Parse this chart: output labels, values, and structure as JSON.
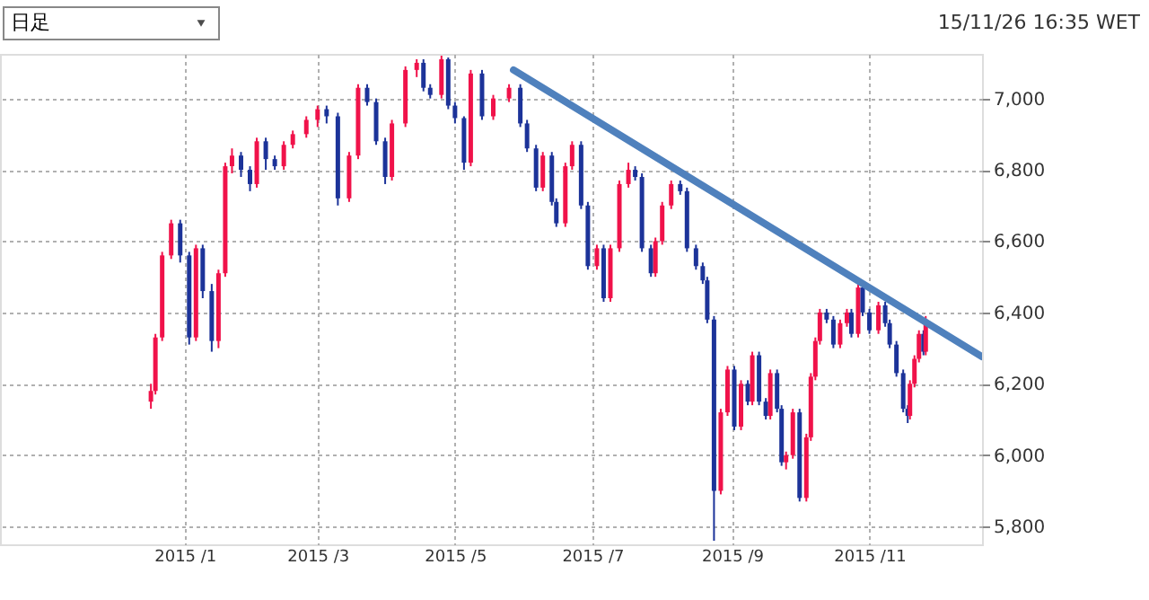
{
  "chart_data": {
    "type": "candlestick",
    "annotations": [
      "日足",
      "15/11/26 16:35 WET"
    ],
    "x": [
      "2014-12-17",
      "2014-12-19",
      "2014-12-22",
      "2014-12-26",
      "2014-12-30",
      "2015-01-03",
      "2015-01-06",
      "2015-01-09",
      "2015-01-13",
      "2015-01-16",
      "2015-01-19",
      "2015-01-22",
      "2015-01-26",
      "2015-01-30",
      "2015-02-02",
      "2015-02-06",
      "2015-02-10",
      "2015-02-14",
      "2015-02-18",
      "2015-02-24",
      "2015-03-01",
      "2015-03-05",
      "2015-03-10",
      "2015-03-15",
      "2015-03-19",
      "2015-03-23",
      "2015-03-27",
      "2015-03-31",
      "2015-04-03",
      "2015-04-09",
      "2015-04-14",
      "2015-04-17",
      "2015-04-20",
      "2015-04-25",
      "2015-04-28",
      "2015-05-01",
      "2015-05-05",
      "2015-05-08",
      "2015-05-13",
      "2015-05-18",
      "2015-05-25",
      "2015-05-30",
      "2015-06-02",
      "2015-06-06",
      "2015-06-09",
      "2015-06-13",
      "2015-06-15",
      "2015-06-19",
      "2015-06-22",
      "2015-06-26",
      "2015-06-29",
      "2015-07-03",
      "2015-07-06",
      "2015-07-09",
      "2015-07-13",
      "2015-07-17",
      "2015-07-20",
      "2015-07-23",
      "2015-07-27",
      "2015-07-29",
      "2015-08-01",
      "2015-08-05",
      "2015-08-09",
      "2015-08-12",
      "2015-08-16",
      "2015-08-19",
      "2015-08-21",
      "2015-08-24",
      "2015-08-27",
      "2015-08-30",
      "2015-09-02",
      "2015-09-05",
      "2015-09-08",
      "2015-09-10",
      "2015-09-13",
      "2015-09-16",
      "2015-09-18",
      "2015-09-21",
      "2015-09-23",
      "2015-09-25",
      "2015-09-28",
      "2015-10-01",
      "2015-10-04",
      "2015-10-06",
      "2015-10-08",
      "2015-10-10",
      "2015-10-13",
      "2015-10-16",
      "2015-10-19",
      "2015-10-22",
      "2015-10-24",
      "2015-10-27",
      "2015-10-29",
      "2015-11-01",
      "2015-11-05",
      "2015-11-08",
      "2015-11-10",
      "2015-11-13",
      "2015-11-16",
      "2015-11-18",
      "2015-11-19",
      "2015-11-21",
      "2015-11-23",
      "2015-11-25",
      "2015-11-26"
    ],
    "ohlc": [
      [
        6150,
        6200,
        6130,
        6180
      ],
      [
        6180,
        6340,
        6170,
        6330
      ],
      [
        6330,
        6570,
        6320,
        6560
      ],
      [
        6560,
        6660,
        6550,
        6650
      ],
      [
        6650,
        6660,
        6540,
        6560
      ],
      [
        6560,
        6570,
        6310,
        6330
      ],
      [
        6330,
        6590,
        6320,
        6580
      ],
      [
        6580,
        6590,
        6440,
        6460
      ],
      [
        6460,
        6480,
        6290,
        6320
      ],
      [
        6320,
        6520,
        6300,
        6510
      ],
      [
        6510,
        6820,
        6500,
        6810
      ],
      [
        6810,
        6860,
        6790,
        6840
      ],
      [
        6840,
        6850,
        6780,
        6800
      ],
      [
        6800,
        6810,
        6740,
        6760
      ],
      [
        6760,
        6890,
        6750,
        6880
      ],
      [
        6880,
        6890,
        6800,
        6830
      ],
      [
        6830,
        6840,
        6800,
        6810
      ],
      [
        6810,
        6880,
        6800,
        6870
      ],
      [
        6870,
        6910,
        6860,
        6900
      ],
      [
        6900,
        6950,
        6890,
        6940
      ],
      [
        6940,
        6980,
        6920,
        6970
      ],
      [
        6970,
        6980,
        6930,
        6950
      ],
      [
        6950,
        6960,
        6700,
        6720
      ],
      [
        6720,
        6850,
        6710,
        6840
      ],
      [
        6840,
        7040,
        6830,
        7030
      ],
      [
        7030,
        7040,
        6980,
        6990
      ],
      [
        6990,
        7000,
        6870,
        6880
      ],
      [
        6880,
        6890,
        6760,
        6780
      ],
      [
        6780,
        6940,
        6770,
        6930
      ],
      [
        6930,
        7090,
        6920,
        7080
      ],
      [
        7080,
        7110,
        7060,
        7100
      ],
      [
        7100,
        7110,
        7020,
        7030
      ],
      [
        7030,
        7040,
        7000,
        7010
      ],
      [
        7010,
        7120,
        7000,
        7110
      ],
      [
        7110,
        7115,
        6970,
        6980
      ],
      [
        6980,
        6990,
        6930,
        6945
      ],
      [
        6945,
        6950,
        6800,
        6820
      ],
      [
        6820,
        7080,
        6810,
        7070
      ],
      [
        7070,
        7080,
        6940,
        6950
      ],
      [
        6950,
        7010,
        6940,
        7000
      ],
      [
        7000,
        7040,
        6990,
        7030
      ],
      [
        7030,
        7040,
        6920,
        6930
      ],
      [
        6930,
        6940,
        6850,
        6860
      ],
      [
        6860,
        6870,
        6740,
        6750
      ],
      [
        6750,
        6850,
        6740,
        6840
      ],
      [
        6840,
        6850,
        6700,
        6710
      ],
      [
        6710,
        6720,
        6640,
        6650
      ],
      [
        6650,
        6820,
        6640,
        6810
      ],
      [
        6810,
        6880,
        6800,
        6870
      ],
      [
        6870,
        6880,
        6690,
        6700
      ],
      [
        6700,
        6710,
        6520,
        6530
      ],
      [
        6530,
        6590,
        6520,
        6580
      ],
      [
        6580,
        6590,
        6430,
        6440
      ],
      [
        6440,
        6590,
        6430,
        6580
      ],
      [
        6580,
        6770,
        6570,
        6760
      ],
      [
        6760,
        6820,
        6750,
        6800
      ],
      [
        6800,
        6810,
        6770,
        6780
      ],
      [
        6780,
        6790,
        6570,
        6580
      ],
      [
        6580,
        6590,
        6500,
        6510
      ],
      [
        6510,
        6610,
        6500,
        6600
      ],
      [
        6600,
        6710,
        6590,
        6700
      ],
      [
        6700,
        6770,
        6690,
        6760
      ],
      [
        6760,
        6770,
        6730,
        6740
      ],
      [
        6740,
        6750,
        6570,
        6580
      ],
      [
        6580,
        6590,
        6520,
        6530
      ],
      [
        6530,
        6540,
        6480,
        6490
      ],
      [
        6490,
        6500,
        6370,
        6380
      ],
      [
        6380,
        6390,
        5760,
        5900
      ],
      [
        5900,
        6130,
        5890,
        6120
      ],
      [
        6120,
        6250,
        6110,
        6240
      ],
      [
        6240,
        6250,
        6070,
        6080
      ],
      [
        6080,
        6210,
        6070,
        6200
      ],
      [
        6200,
        6210,
        6140,
        6150
      ],
      [
        6150,
        6290,
        6140,
        6280
      ],
      [
        6280,
        6290,
        6140,
        6150
      ],
      [
        6150,
        6160,
        6100,
        6110
      ],
      [
        6110,
        6240,
        6100,
        6230
      ],
      [
        6230,
        6240,
        6120,
        6130
      ],
      [
        6130,
        6140,
        5970,
        5980
      ],
      [
        5980,
        6010,
        5960,
        6000
      ],
      [
        6000,
        6130,
        5990,
        6120
      ],
      [
        6120,
        6130,
        5870,
        5880
      ],
      [
        5880,
        6060,
        5870,
        6050
      ],
      [
        6050,
        6230,
        6040,
        6220
      ],
      [
        6220,
        6330,
        6210,
        6320
      ],
      [
        6320,
        6410,
        6310,
        6400
      ],
      [
        6400,
        6410,
        6370,
        6380
      ],
      [
        6380,
        6390,
        6300,
        6310
      ],
      [
        6310,
        6380,
        6300,
        6370
      ],
      [
        6370,
        6410,
        6360,
        6400
      ],
      [
        6400,
        6410,
        6330,
        6340
      ],
      [
        6340,
        6480,
        6330,
        6470
      ],
      [
        6470,
        6480,
        6390,
        6400
      ],
      [
        6400,
        6410,
        6340,
        6350
      ],
      [
        6350,
        6430,
        6340,
        6420
      ],
      [
        6420,
        6430,
        6360,
        6370
      ],
      [
        6370,
        6380,
        6300,
        6310
      ],
      [
        6310,
        6320,
        6220,
        6230
      ],
      [
        6230,
        6240,
        6120,
        6130
      ],
      [
        6130,
        6140,
        6090,
        6110
      ],
      [
        6110,
        6210,
        6100,
        6200
      ],
      [
        6200,
        6280,
        6190,
        6270
      ],
      [
        6270,
        6350,
        6260,
        6340
      ],
      [
        6340,
        6350,
        6280,
        6290
      ],
      [
        6290,
        6390,
        6280,
        6380
      ]
    ],
    "colors": [
      "#f0124a",
      "#f0124a",
      "#f0124a",
      "#f0124a",
      "#1c3399",
      "#1c3399",
      "#f0124a",
      "#1c3399",
      "#1c3399",
      "#f0124a",
      "#f0124a",
      "#f0124a",
      "#1c3399",
      "#1c3399",
      "#f0124a",
      "#1c3399",
      "#1c3399",
      "#f0124a",
      "#f0124a",
      "#f0124a",
      "#f0124a",
      "#1c3399",
      "#1c3399",
      "#f0124a",
      "#f0124a",
      "#1c3399",
      "#1c3399",
      "#1c3399",
      "#f0124a",
      "#f0124a",
      "#f0124a",
      "#1c3399",
      "#1c3399",
      "#f0124a",
      "#1c3399",
      "#1c3399",
      "#1c3399",
      "#f0124a",
      "#1c3399",
      "#f0124a",
      "#f0124a",
      "#1c3399",
      "#1c3399",
      "#1c3399",
      "#f0124a",
      "#1c3399",
      "#1c3399",
      "#f0124a",
      "#f0124a",
      "#1c3399",
      "#1c3399",
      "#f0124a",
      "#1c3399",
      "#f0124a",
      "#f0124a",
      "#f0124a",
      "#1c3399",
      "#1c3399",
      "#1c3399",
      "#f0124a",
      "#f0124a",
      "#f0124a",
      "#1c3399",
      "#1c3399",
      "#1c3399",
      "#1c3399",
      "#1c3399",
      "#1c3399",
      "#f0124a",
      "#f0124a",
      "#1c3399",
      "#f0124a",
      "#1c3399",
      "#f0124a",
      "#1c3399",
      "#1c3399",
      "#f0124a",
      "#1c3399",
      "#1c3399",
      "#f0124a",
      "#f0124a",
      "#1c3399",
      "#f0124a",
      "#f0124a",
      "#f0124a",
      "#f0124a",
      "#1c3399",
      "#1c3399",
      "#f0124a",
      "#f0124a",
      "#1c3399",
      "#f0124a",
      "#1c3399",
      "#1c3399",
      "#f0124a",
      "#1c3399",
      "#1c3399",
      "#1c3399",
      "#1c3399",
      "#1c3399",
      "#f0124a",
      "#f0124a",
      "#f0124a",
      "#1c3399",
      "#f0124a"
    ],
    "series": [
      {
        "type": "line",
        "color": "#4f81bd",
        "x": [
          "2015-05-27",
          "2015-12-21"
        ],
        "values": [
          7080,
          6276
        ]
      }
    ],
    "xlim": [
      "2014-10-11",
      "2015-12-21"
    ],
    "xticks": [
      {
        "value": "2015-01-01",
        "label": "2015 /1"
      },
      {
        "value": "2015-03-01",
        "label": "2015 /3"
      },
      {
        "value": "2015-05-01",
        "label": "2015 /5"
      },
      {
        "value": "2015-07-01",
        "label": "2015 /7"
      },
      {
        "value": "2015-09-01",
        "label": "2015 /9"
      },
      {
        "value": "2015-11-01",
        "label": "2015 /11"
      }
    ],
    "ylim": [
      5750,
      7125
    ],
    "yticks": [
      {
        "value": 5800,
        "label": "5,800"
      },
      {
        "value": 6000,
        "label": "6,000"
      },
      {
        "value": 6200,
        "label": "6,200"
      },
      {
        "value": 6400,
        "label": "6,400"
      },
      {
        "value": 6600,
        "label": "6,600"
      },
      {
        "value": 6800,
        "label": "6,800"
      },
      {
        "value": 7000,
        "label": "7,000"
      }
    ],
    "grid": true
  }
}
